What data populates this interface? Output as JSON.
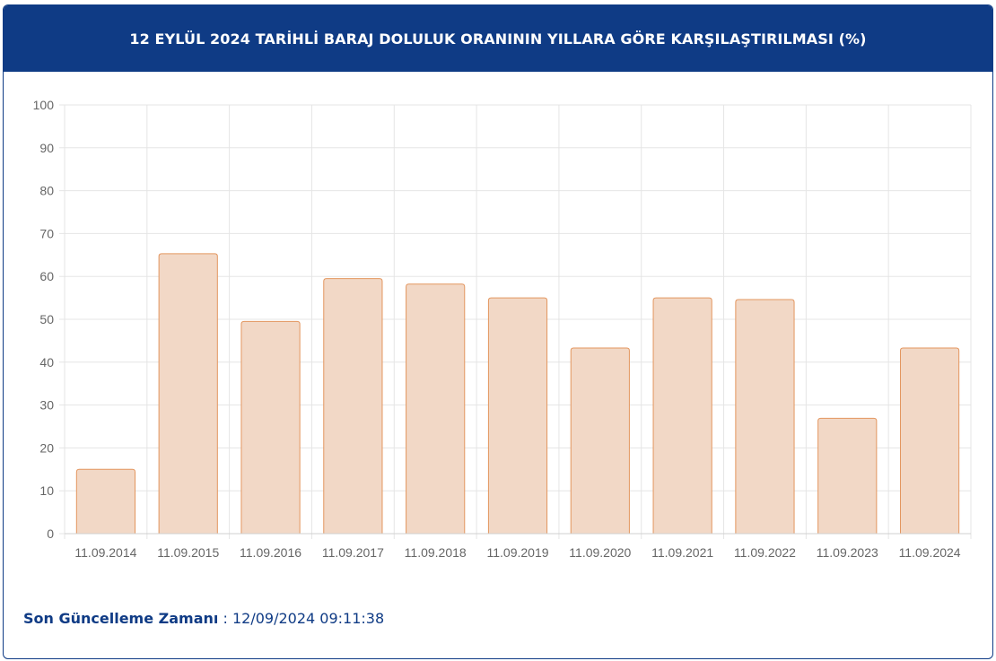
{
  "header": {
    "title": "12 EYLÜL 2024 TARİHLİ BARAJ DOLULUK ORANININ YILLARA GÖRE KARŞILAŞTIRILMASI (%)"
  },
  "footer": {
    "label": "Son Güncelleme Zamanı",
    "separator": " : ",
    "timestamp": "12/09/2024 09:11:38"
  },
  "colors": {
    "header_bg": "#0f3b85",
    "bar_fill": "#f2d8c6",
    "bar_stroke": "#e3965f",
    "grid": "#e5e5e5"
  },
  "chart_data": {
    "type": "bar",
    "title": "12 EYLÜL 2024 TARİHLİ BARAJ DOLULUK ORANININ YILLARA GÖRE KARŞILAŞTIRILMASI (%)",
    "categories": [
      "11.09.2014",
      "11.09.2015",
      "11.09.2016",
      "11.09.2017",
      "11.09.2018",
      "11.09.2019",
      "11.09.2020",
      "11.09.2021",
      "11.09.2022",
      "11.09.2023",
      "11.09.2024"
    ],
    "values": [
      15,
      65.3,
      49.5,
      59.5,
      58.2,
      55,
      43.3,
      55,
      54.6,
      26.9,
      43.3
    ],
    "yticks": [
      0,
      10,
      20,
      30,
      40,
      50,
      60,
      70,
      80,
      90,
      100
    ],
    "ylim": [
      0,
      100
    ],
    "xlabel": "",
    "ylabel": "",
    "grid": true,
    "legend": "none"
  }
}
